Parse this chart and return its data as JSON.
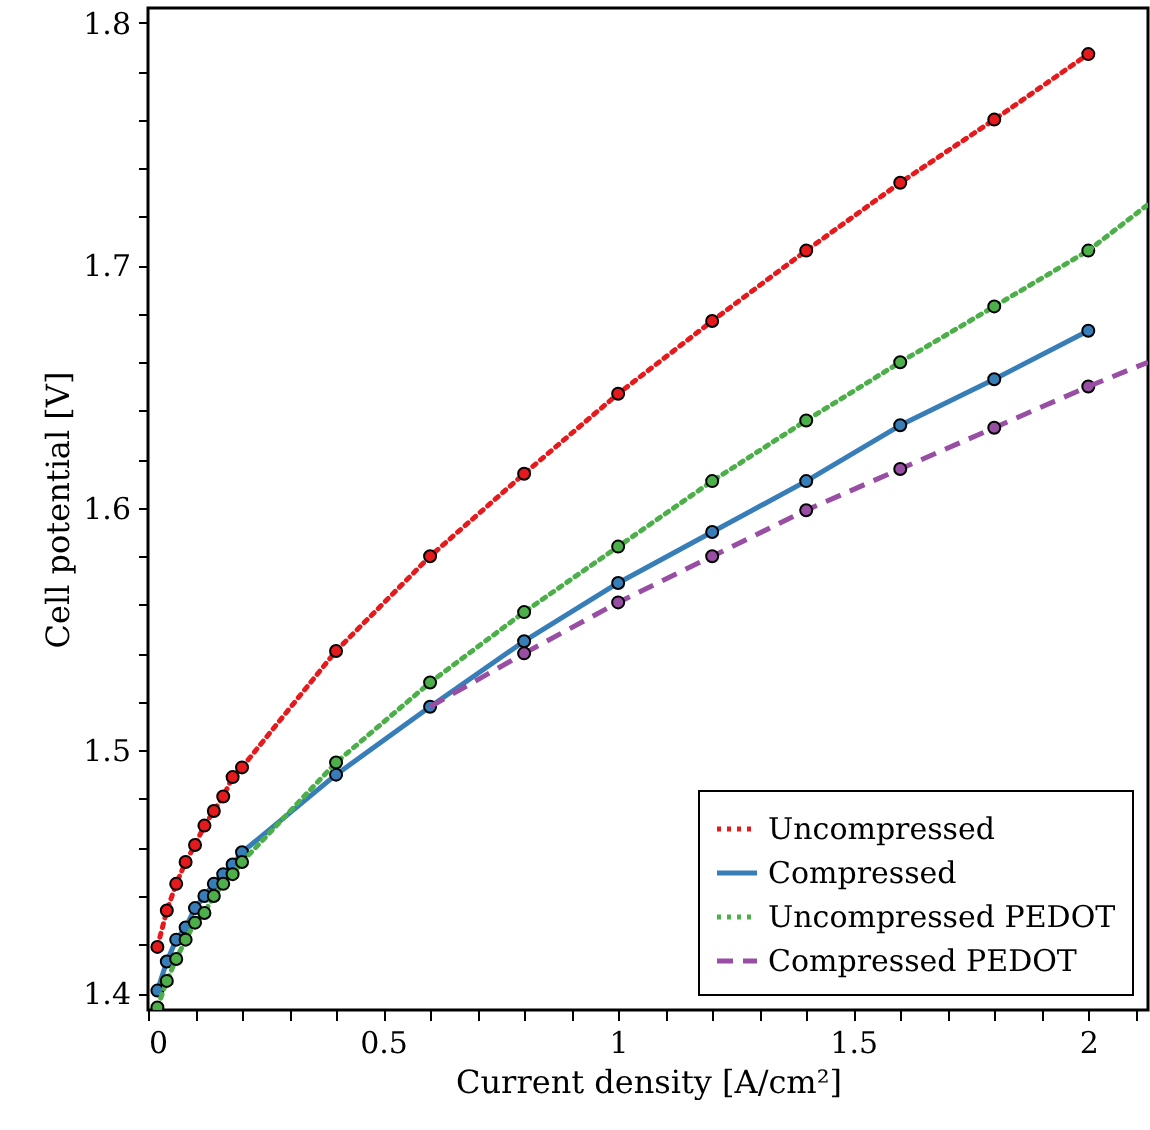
{
  "chart_data": {
    "type": "line",
    "xlabel": "Current density [A/cm²]",
    "ylabel": "Cell potential [V]",
    "xlim": [
      0,
      2.127
    ],
    "ylim": [
      1.393,
      1.806
    ],
    "xticks": [
      0,
      {
        "value": 0.1,
        "label": null
      },
      {
        "value": 0.2,
        "label": null
      },
      {
        "value": 0.3,
        "label": null
      },
      {
        "value": 0.4,
        "label": null
      },
      0.5,
      {
        "value": 0.6,
        "label": null
      },
      {
        "value": 0.7,
        "label": null
      },
      {
        "value": 0.8,
        "label": null
      },
      {
        "value": 0.9,
        "label": null
      },
      1,
      {
        "value": 1.1,
        "label": null
      },
      {
        "value": 1.2,
        "label": null
      },
      {
        "value": 1.3,
        "label": null
      },
      {
        "value": 1.4,
        "label": null
      },
      1.5,
      {
        "value": 1.6,
        "label": null
      },
      {
        "value": 1.7,
        "label": null
      },
      {
        "value": 1.8,
        "label": null
      },
      {
        "value": 1.9,
        "label": null
      },
      2,
      {
        "value": 2.1,
        "label": null
      }
    ],
    "yticks": [
      1.4,
      {
        "value": 1.42,
        "label": null
      },
      {
        "value": 1.44,
        "label": null
      },
      {
        "value": 1.46,
        "label": null
      },
      {
        "value": 1.48,
        "label": null
      },
      1.5,
      {
        "value": 1.52,
        "label": null
      },
      {
        "value": 1.54,
        "label": null
      },
      {
        "value": 1.56,
        "label": null
      },
      {
        "value": 1.58,
        "label": null
      },
      1.6,
      {
        "value": 1.62,
        "label": null
      },
      {
        "value": 1.64,
        "label": null
      },
      {
        "value": 1.66,
        "label": null
      },
      {
        "value": 1.68,
        "label": null
      },
      1.7,
      {
        "value": 1.72,
        "label": null
      },
      {
        "value": 1.74,
        "label": null
      },
      {
        "value": 1.76,
        "label": null
      },
      {
        "value": 1.78,
        "label": null
      },
      1.8
    ],
    "grid": false,
    "legend": "bottom right",
    "marker": "circle",
    "series": [
      {
        "name": "Uncompressed",
        "color": "#e41a1c",
        "line_style": "dotted",
        "x": [
          0.02,
          0.04,
          0.06,
          0.08,
          0.1,
          0.12,
          0.14,
          0.16,
          0.18,
          0.2,
          0.4,
          0.6,
          0.8,
          1.0,
          1.2,
          1.4,
          1.6,
          1.8,
          2.0
        ],
        "values": [
          1.419,
          1.434,
          1.445,
          1.454,
          1.461,
          1.469,
          1.475,
          1.481,
          1.489,
          1.493,
          1.541,
          1.58,
          1.614,
          1.647,
          1.677,
          1.706,
          1.734,
          1.76,
          1.787
        ]
      },
      {
        "name": "Compressed",
        "color": "#377eb8",
        "line_style": "solid",
        "x": [
          0.02,
          0.04,
          0.06,
          0.08,
          0.1,
          0.12,
          0.14,
          0.16,
          0.18,
          0.2,
          0.4,
          0.6,
          0.8,
          1.0,
          1.2,
          1.4,
          1.6,
          1.8,
          2.0
        ],
        "values": [
          1.401,
          1.413,
          1.422,
          1.427,
          1.435,
          1.44,
          1.445,
          1.449,
          1.453,
          1.458,
          1.49,
          1.518,
          1.545,
          1.569,
          1.59,
          1.611,
          1.634,
          1.653,
          1.673
        ]
      },
      {
        "name": "Uncompressed PEDOT",
        "color": "#4daf4a",
        "line_style": "dotted",
        "x": [
          0.02,
          0.04,
          0.06,
          0.08,
          0.1,
          0.12,
          0.14,
          0.16,
          0.18,
          0.2,
          0.4,
          0.6,
          0.8,
          1.0,
          1.2,
          1.4,
          1.6,
          1.8,
          2.0
        ],
        "values": [
          1.394,
          1.405,
          1.414,
          1.422,
          1.429,
          1.433,
          1.44,
          1.445,
          1.449,
          1.454,
          1.495,
          1.528,
          1.557,
          1.584,
          1.611,
          1.636,
          1.66,
          1.683,
          1.706
        ]
      },
      {
        "name": "Compressed PEDOT",
        "color": "#984ea3",
        "line_style": "dashed",
        "x": [
          0.8,
          1.0,
          1.2,
          1.4,
          1.6,
          1.8,
          2.0
        ],
        "values": [
          1.54,
          1.561,
          1.58,
          1.599,
          1.616,
          1.633,
          1.65
        ]
      },
      {
        "color": "#4daf4a",
        "line_style": "dotted",
        "marker": "none",
        "x": [
          2.0,
          2.127
        ],
        "values": [
          1.706,
          1.725
        ]
      },
      {
        "color": "#984ea3",
        "line_style": "dashed",
        "marker": "none",
        "x": [
          2.0,
          2.127
        ],
        "values": [
          1.65,
          1.66
        ]
      },
      {
        "color": "#984ea3",
        "line_style": "dashed",
        "marker": "none",
        "x": [
          0.6,
          0.8
        ],
        "values": [
          1.518,
          1.54
        ]
      }
    ]
  }
}
